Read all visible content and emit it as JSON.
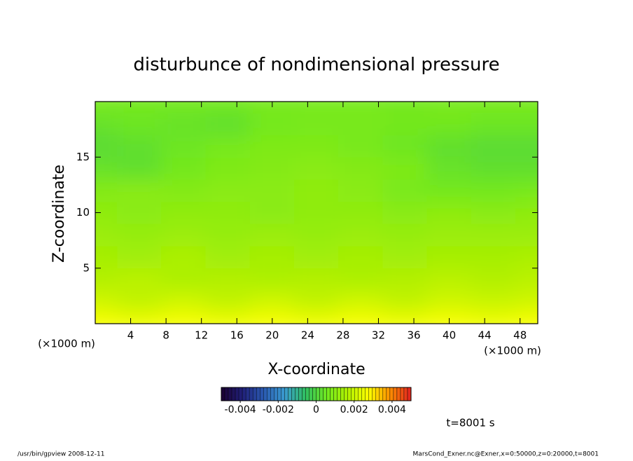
{
  "chart_data": {
    "type": "heatmap",
    "title": "disturbunce of nondimensional pressure",
    "x_label": "X-coordinate",
    "y_label": "Z-coordinate",
    "x_unit": "(×1000 m)",
    "y_unit": "(×1000 m)",
    "time_label": "t=8001 s",
    "x": [
      0,
      5,
      10,
      15,
      20,
      25,
      30,
      35,
      40,
      45,
      50
    ],
    "y": [
      0,
      2,
      4,
      6,
      8,
      10,
      12,
      14,
      16,
      18,
      20
    ],
    "z": [
      [
        0.0027,
        0.0026,
        0.0027,
        0.0026,
        0.0027,
        0.0026,
        0.0027,
        0.0026,
        0.0027,
        0.0026,
        0.0027
      ],
      [
        0.0021,
        0.0019,
        0.0021,
        0.0019,
        0.0021,
        0.0019,
        0.0021,
        0.0019,
        0.0021,
        0.002,
        0.0021
      ],
      [
        0.0017,
        0.0018,
        0.0016,
        0.0017,
        0.0016,
        0.0017,
        0.0016,
        0.0017,
        0.0018,
        0.0017,
        0.0018
      ],
      [
        0.0015,
        0.0014,
        0.0016,
        0.0014,
        0.0015,
        0.0014,
        0.0015,
        0.0014,
        0.0015,
        0.0015,
        0.0016
      ],
      [
        0.0013,
        0.0012,
        0.0013,
        0.0012,
        0.0013,
        0.0012,
        0.0013,
        0.0012,
        0.0013,
        0.0013,
        0.0013
      ],
      [
        0.0011,
        0.001,
        0.0011,
        0.0011,
        0.001,
        0.0011,
        0.0011,
        0.001,
        0.0011,
        0.001,
        0.0011
      ],
      [
        0.0009,
        0.001,
        0.0009,
        0.001,
        0.001,
        0.0011,
        0.001,
        0.0007,
        0.0006,
        0.0006,
        0.0007
      ],
      [
        0.0004,
        0.0003,
        0.0006,
        0.0008,
        0.0009,
        0.001,
        0.0009,
        0.0008,
        0.0004,
        0.0003,
        0.0003
      ],
      [
        0.0002,
        0.0003,
        0.0005,
        0.0007,
        0.0008,
        0.0008,
        0.0007,
        0.0005,
        0.0003,
        0.0002,
        0.0002
      ],
      [
        0.0004,
        0.0005,
        0.0004,
        0.0003,
        0.0006,
        0.0007,
        0.0007,
        0.0006,
        0.0006,
        0.0005,
        0.0005
      ],
      [
        0.0007,
        0.0006,
        0.0006,
        0.0006,
        0.0007,
        0.0007,
        0.0007,
        0.0006,
        0.0007,
        0.0007,
        0.0007
      ]
    ],
    "xlim": [
      0,
      50
    ],
    "ylim": [
      0,
      20
    ],
    "xticks": [
      4,
      8,
      12,
      16,
      20,
      24,
      28,
      32,
      36,
      40,
      44,
      48
    ],
    "yticks": [
      5,
      10,
      15
    ],
    "colorbar": {
      "clim": [
        -0.005,
        0.005
      ],
      "ticks": [
        -0.004,
        -0.002,
        0,
        0.002,
        0.004
      ],
      "colors": [
        "#1a0030",
        "#20207a",
        "#2a5ab0",
        "#3a9ad0",
        "#30c060",
        "#70e820",
        "#b0f000",
        "#ffff00",
        "#ff9000",
        "#e02020"
      ]
    }
  },
  "footer": {
    "left": "/usr/bin/gpview  2008-12-11",
    "right": "MarsCond_Exner.nc@Exner,x=0:50000,z=0:20000,t=8001"
  }
}
